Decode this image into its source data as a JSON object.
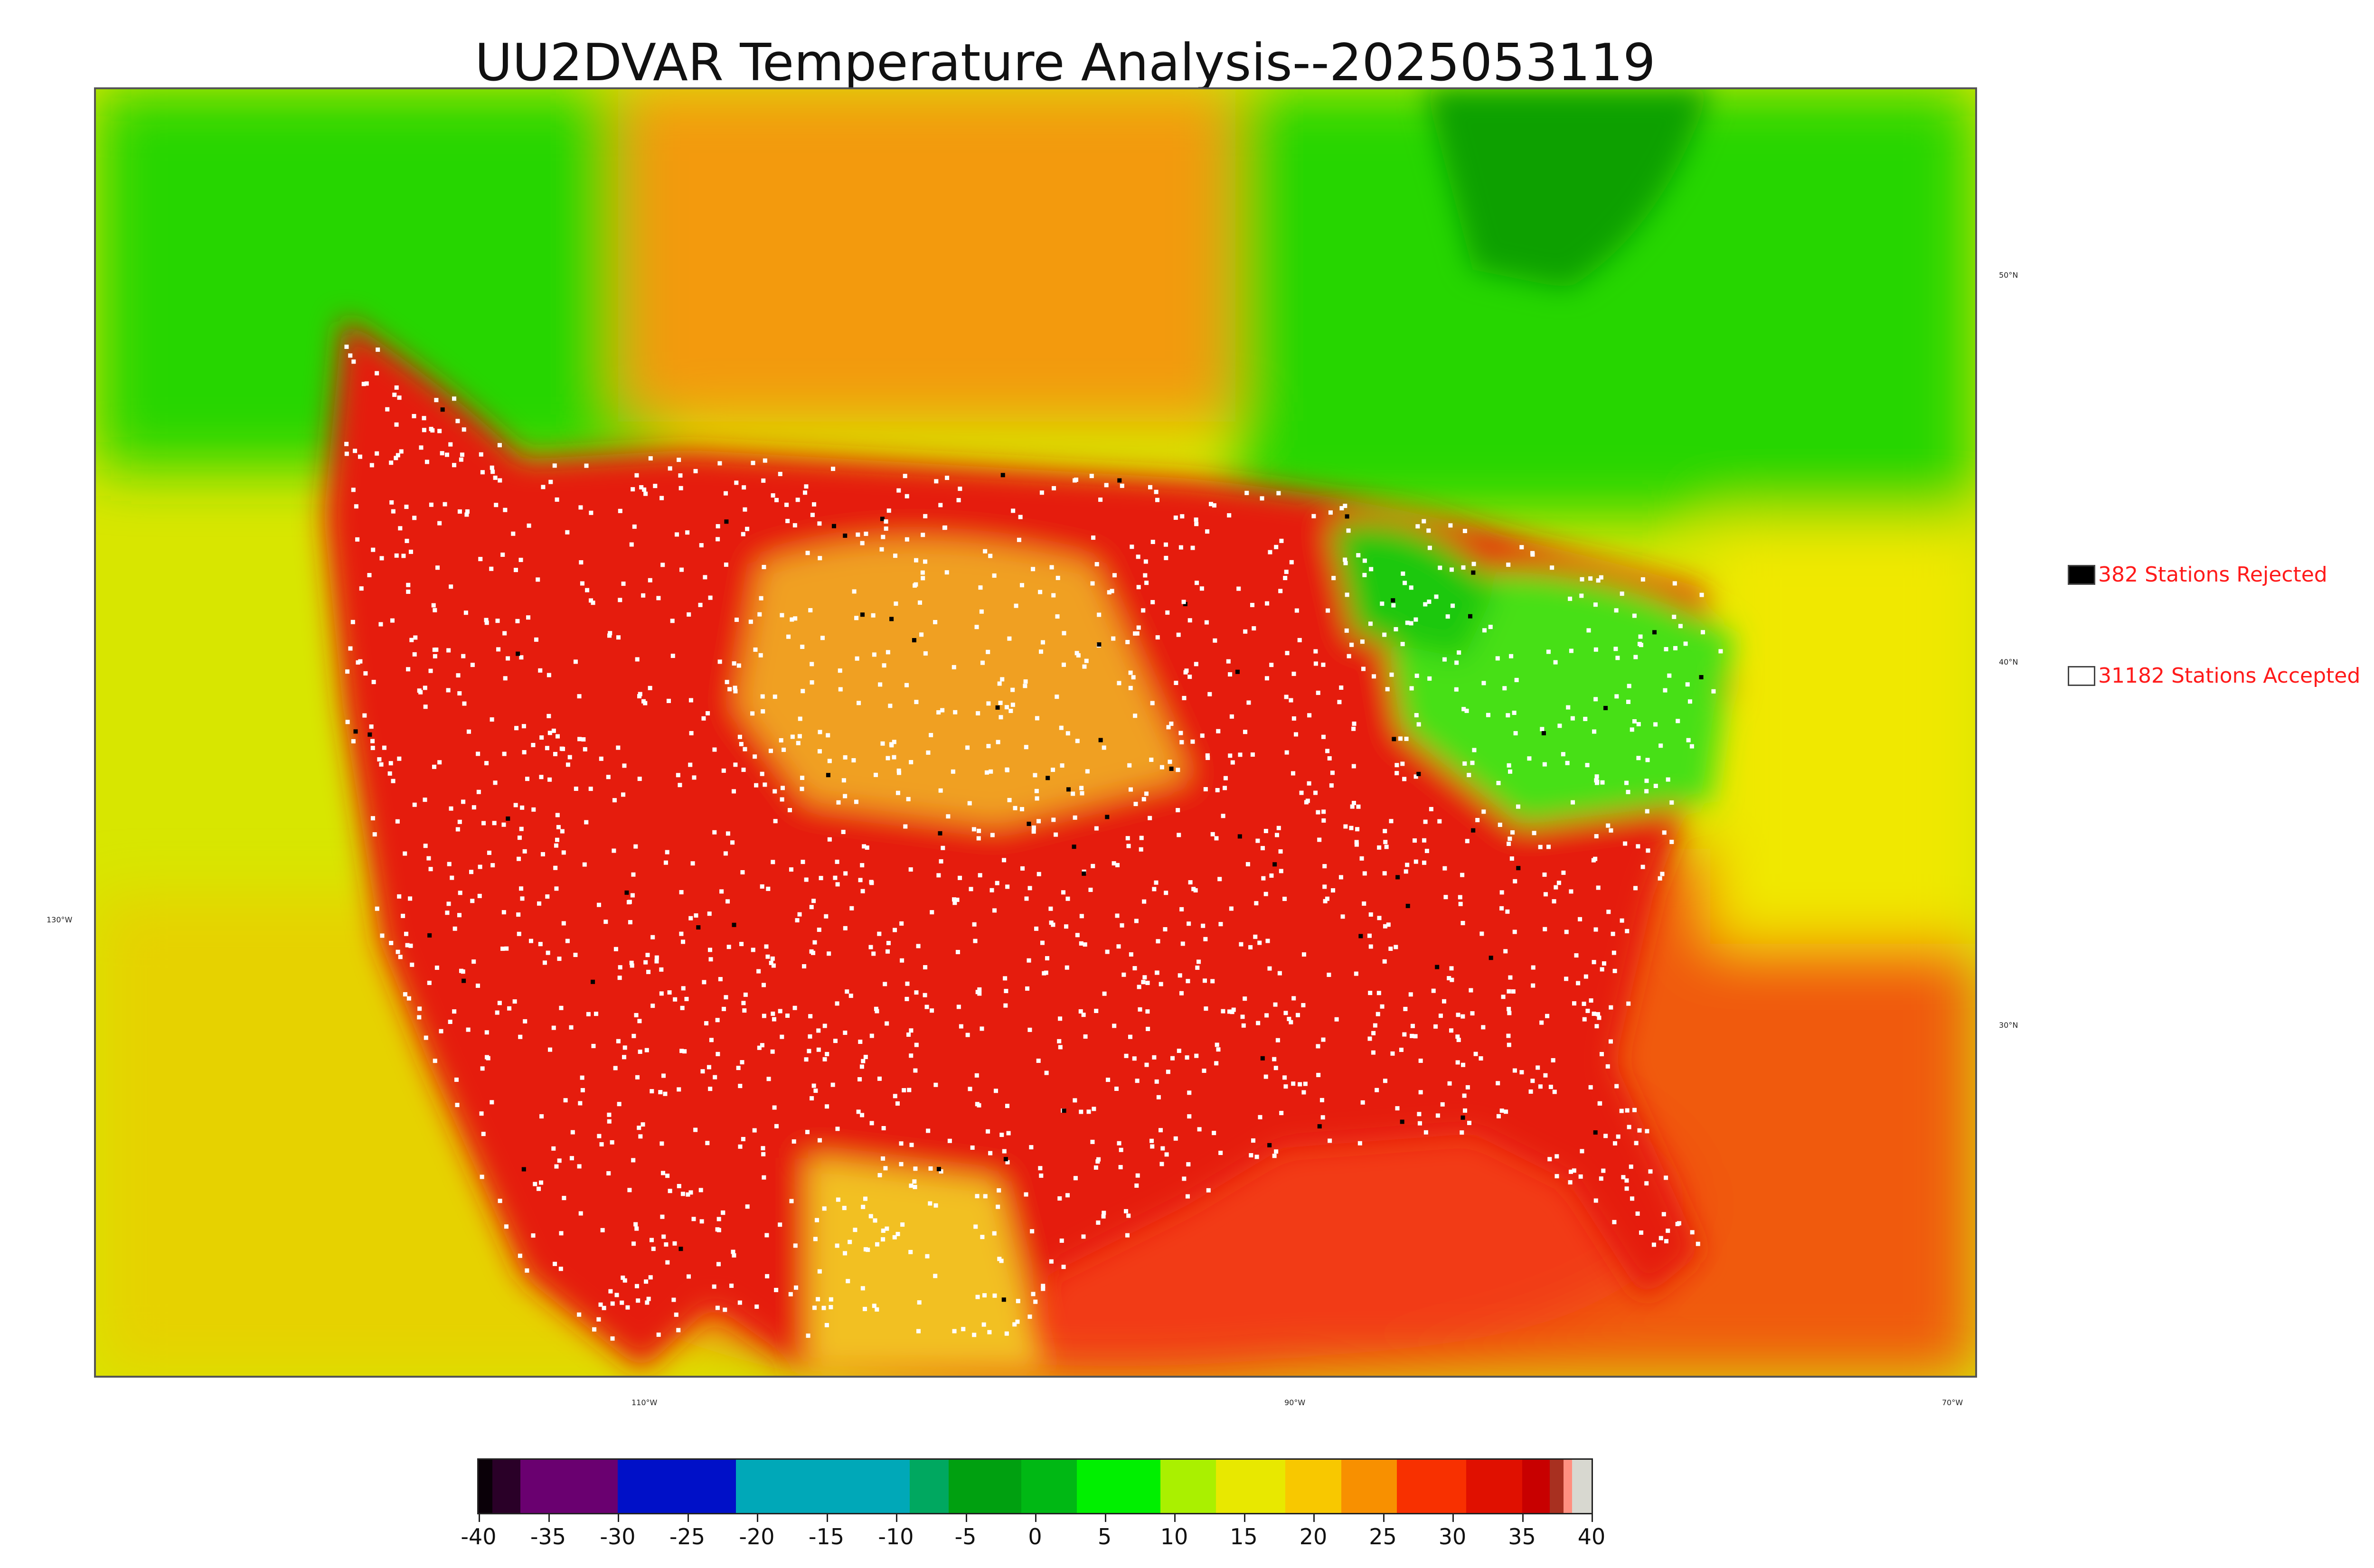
{
  "title": "UU2DVAR Temperature Analysis--2025053119",
  "map": {
    "lat_labels": [
      "50°N",
      "40°N",
      "30°N"
    ],
    "lon_labels": [
      "130°W",
      "110°W",
      "90°W",
      "70°W"
    ],
    "colors": {
      "ocean_pacific_west": "#d8e600",
      "ocean_pacific_south": "#e6d200",
      "gulf": "#f23a12",
      "atlantic_south": "#f05a10",
      "atlantic_north": "#f0e800",
      "canada_cold": "#26d600",
      "hudson_bay": "#0ea000",
      "canada_warm": "#f39a10",
      "conus_hot": "#e51a0a",
      "plains_warm": "#f0a020",
      "northeast_cool": "#46e018",
      "great_lakes": "#1ec80a",
      "mexico": "#f2c020",
      "coast_line": "#000000"
    }
  },
  "legend": {
    "rejected": {
      "label": "382 Stations Rejected",
      "swatch": "#000000"
    },
    "accepted": {
      "label": "31182 Stations Accepted",
      "swatch": "#ffffff"
    }
  },
  "colorbar": {
    "min": -40,
    "max": 40,
    "tick_labels": [
      "-40",
      "-35",
      "-30",
      "-25",
      "-20",
      "-15",
      "-10",
      "-5",
      "0",
      "5",
      "10",
      "15",
      "20",
      "25",
      "30",
      "35",
      "40"
    ],
    "tick_values": [
      -40,
      -35,
      -30,
      -25,
      -20,
      -15,
      -10,
      -5,
      0,
      5,
      10,
      15,
      20,
      25,
      30,
      35,
      40
    ],
    "segments": [
      {
        "from": -40,
        "to": -39,
        "color": "#0a0008"
      },
      {
        "from": -39,
        "to": -37,
        "color": "#2a0028"
      },
      {
        "from": -37,
        "to": -30,
        "color": "#6a0070"
      },
      {
        "from": -30,
        "to": -21.5,
        "color": "#0010c8"
      },
      {
        "from": -21.5,
        "to": -9,
        "color": "#00a8b8"
      },
      {
        "from": -9,
        "to": -6.2,
        "color": "#00a860"
      },
      {
        "from": -6.2,
        "to": -1,
        "color": "#00a010"
      },
      {
        "from": -1,
        "to": 3,
        "color": "#00b814"
      },
      {
        "from": 3,
        "to": 9,
        "color": "#00f000"
      },
      {
        "from": 9,
        "to": 13,
        "color": "#aaf000"
      },
      {
        "from": 13,
        "to": 18,
        "color": "#e8e800"
      },
      {
        "from": 18,
        "to": 22,
        "color": "#f8c800"
      },
      {
        "from": 22,
        "to": 26,
        "color": "#f89000"
      },
      {
        "from": 26,
        "to": 31,
        "color": "#f83000"
      },
      {
        "from": 31,
        "to": 35,
        "color": "#e01000"
      },
      {
        "from": 35,
        "to": 37,
        "color": "#c80000"
      },
      {
        "from": 37,
        "to": 38,
        "color": "#a83020"
      },
      {
        "from": 38,
        "to": 38.6,
        "color": "#ff9080"
      },
      {
        "from": 38.6,
        "to": 40,
        "color": "#d8d8d0"
      }
    ]
  }
}
